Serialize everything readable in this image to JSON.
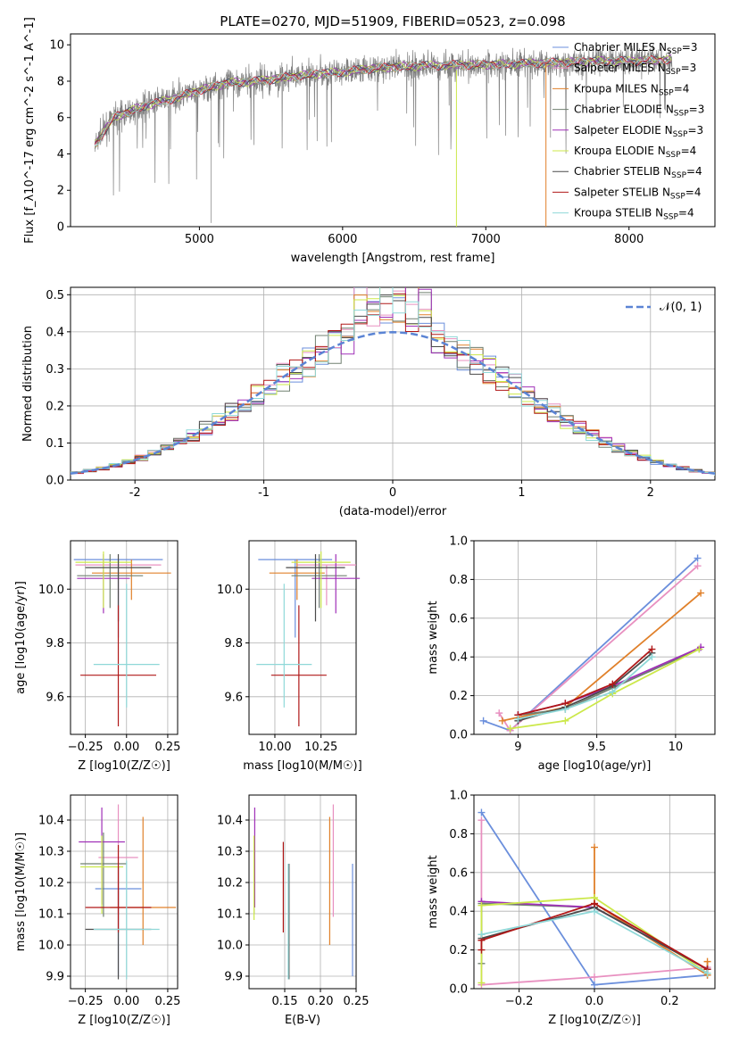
{
  "figure": {
    "title": "PLATE=0270, MJD=51909, FIBERID=0523, z=0.098"
  },
  "colors": {
    "Chabrier MILES": "#6b8fdc",
    "Salpeter MILES": "#e890c0",
    "Kroupa MILES": "#e0802a",
    "Chabrier ELODIE": "#708070",
    "Salpeter ELODIE": "#a030b8",
    "Kroupa ELODIE": "#cce84a",
    "Chabrier STELIB": "#4a4a4a",
    "Salpeter STELIB": "#b01818",
    "Kroupa STELIB": "#8fd8d8",
    "data": "#808080",
    "gaussian": "#5b84d4"
  },
  "chart_data": [
    {
      "id": "spectrum",
      "type": "line",
      "xlabel": "wavelength [Angstrom, rest frame]",
      "ylabel": "Flux [f_λ10^-17 erg cm^-2 s^-1 A^-1]",
      "xlim": [
        4100,
        8600
      ],
      "ylim": [
        0,
        10.6
      ],
      "xticks": [
        5000,
        6000,
        7000,
        8000
      ],
      "yticks": [
        0,
        2,
        4,
        6,
        8,
        10
      ],
      "legend": "right",
      "legend_entries": [
        {
          "name": "Chabrier MILES",
          "n": 3
        },
        {
          "name": "Salpeter MILES",
          "n": 3
        },
        {
          "name": "Kroupa MILES",
          "n": 4
        },
        {
          "name": "Chabrier ELODIE",
          "n": 3
        },
        {
          "name": "Salpeter ELODIE",
          "n": 3
        },
        {
          "name": "Kroupa ELODIE",
          "n": 4
        },
        {
          "name": "Chabrier STELIB",
          "n": 4
        },
        {
          "name": "Salpeter STELIB",
          "n": 4
        },
        {
          "name": "Kroupa STELIB",
          "n": 4
        }
      ],
      "continuum_x": [
        4270,
        4400,
        4600,
        4800,
        5000,
        5200,
        5400,
        5600,
        5800,
        6000,
        6200,
        6400,
        6600,
        6800,
        7000,
        7200,
        7400,
        7600,
        7800,
        8000,
        8200,
        8300
      ],
      "continuum_y": [
        4.5,
        6.0,
        6.6,
        7.0,
        7.5,
        7.9,
        8.0,
        8.2,
        8.4,
        8.5,
        8.7,
        8.8,
        8.85,
        8.9,
        8.9,
        8.95,
        9.0,
        9.05,
        9.1,
        9.1,
        9.15,
        9.2
      ]
    },
    {
      "id": "residuals",
      "type": "histogram",
      "xlabel": "(data-model)/error",
      "ylabel": "Normed distribution",
      "xlim": [
        -2.5,
        2.5
      ],
      "ylim": [
        0,
        0.52
      ],
      "xticks": [
        -2,
        -1,
        0,
        1,
        2
      ],
      "yticks": [
        0.0,
        0.1,
        0.2,
        0.3,
        0.4,
        0.5
      ],
      "legend": "top-right",
      "gaussian_label": "𝒩(0, 1)",
      "bin_width": 0.1
    },
    {
      "id": "age_vs_z",
      "type": "scatter",
      "xlabel": "Z [log10(Z/Z☉)]",
      "ylabel": "age  [log10(age/yr)]",
      "xlim": [
        -0.34,
        0.31
      ],
      "ylim": [
        9.46,
        10.18
      ],
      "xticks": [
        -0.25,
        0.0,
        0.25
      ],
      "xtick_labels": [
        "−0.25",
        "0.00",
        "0.25"
      ],
      "yticks": [
        9.6,
        9.8,
        10.0
      ],
      "points": [
        {
          "series": "Chabrier MILES",
          "x": -0.05,
          "y": 10.11,
          "xerr": 0.27,
          "yerr_lo": 0.29,
          "yerr_hi": 0.0
        },
        {
          "series": "Salpeter MILES",
          "x": -0.05,
          "y": 10.09,
          "xerr": 0.26,
          "yerr_lo": 0.15,
          "yerr_hi": 0.0
        },
        {
          "series": "Kroupa MILES",
          "x": 0.03,
          "y": 10.06,
          "xerr": 0.24,
          "yerr_lo": 0.1,
          "yerr_hi": 0.05
        },
        {
          "series": "Chabrier ELODIE",
          "x": -0.1,
          "y": 10.05,
          "xerr": 0.2,
          "yerr_lo": 0.12,
          "yerr_hi": 0.08
        },
        {
          "series": "Salpeter ELODIE",
          "x": -0.14,
          "y": 10.04,
          "xerr": 0.16,
          "yerr_lo": 0.13,
          "yerr_hi": 0.09
        },
        {
          "series": "Kroupa ELODIE",
          "x": -0.14,
          "y": 10.1,
          "xerr": 0.17,
          "yerr_lo": 0.17,
          "yerr_hi": 0.04
        },
        {
          "series": "Chabrier STELIB",
          "x": -0.05,
          "y": 10.08,
          "xerr": 0.2,
          "yerr_lo": 0.2,
          "yerr_hi": 0.05
        },
        {
          "series": "Salpeter STELIB",
          "x": -0.05,
          "y": 9.68,
          "xerr": 0.23,
          "yerr_lo": 0.19,
          "yerr_hi": 0.26
        },
        {
          "series": "Kroupa STELIB",
          "x": 0.0,
          "y": 9.72,
          "xerr": 0.2,
          "yerr_lo": 0.16,
          "yerr_hi": 0.3
        }
      ]
    },
    {
      "id": "age_vs_mass",
      "type": "scatter",
      "xlabel": "mass [log10(M/M☉)]",
      "ylabel": "",
      "xlim": [
        9.86,
        10.44
      ],
      "ylim": [
        9.46,
        10.18
      ],
      "xticks": [
        10.0,
        10.25
      ],
      "xtick_labels": [
        "10.00",
        "10.25"
      ],
      "yticks": [
        9.6,
        9.8,
        10.0
      ],
      "points": [
        {
          "series": "Chabrier MILES",
          "x": 10.11,
          "y": 10.11,
          "xerr": 0.2,
          "yerr_lo": 0.29,
          "yerr_hi": 0.0
        },
        {
          "series": "Salpeter MILES",
          "x": 10.28,
          "y": 10.09,
          "xerr": 0.16,
          "yerr_lo": 0.15,
          "yerr_hi": 0.0
        },
        {
          "series": "Kroupa MILES",
          "x": 10.12,
          "y": 10.06,
          "xerr": 0.15,
          "yerr_lo": 0.1,
          "yerr_hi": 0.05
        },
        {
          "series": "Chabrier ELODIE",
          "x": 10.24,
          "y": 10.05,
          "xerr": 0.15,
          "yerr_lo": 0.12,
          "yerr_hi": 0.08
        },
        {
          "series": "Salpeter ELODIE",
          "x": 10.33,
          "y": 10.04,
          "xerr": 0.13,
          "yerr_lo": 0.13,
          "yerr_hi": 0.09
        },
        {
          "series": "Kroupa ELODIE",
          "x": 10.25,
          "y": 10.1,
          "xerr": 0.16,
          "yerr_lo": 0.17,
          "yerr_hi": 0.04
        },
        {
          "series": "Chabrier STELIB",
          "x": 10.22,
          "y": 10.08,
          "xerr": 0.16,
          "yerr_lo": 0.2,
          "yerr_hi": 0.05
        },
        {
          "series": "Salpeter STELIB",
          "x": 10.13,
          "y": 9.68,
          "xerr": 0.15,
          "yerr_lo": 0.19,
          "yerr_hi": 0.26
        },
        {
          "series": "Kroupa STELIB",
          "x": 10.05,
          "y": 9.72,
          "xerr": 0.15,
          "yerr_lo": 0.16,
          "yerr_hi": 0.3
        }
      ]
    },
    {
      "id": "massweight_vs_age",
      "type": "line",
      "xlabel": "age  [log10(age/yr)]",
      "ylabel": "mass weight",
      "xlim": [
        8.72,
        10.25
      ],
      "ylim": [
        0,
        1.0
      ],
      "xticks": [
        9.0,
        9.5,
        10.0
      ],
      "yticks": [
        0.0,
        0.2,
        0.4,
        0.6,
        0.8,
        1.0
      ],
      "series": [
        {
          "name": "Chabrier MILES",
          "x": [
            8.78,
            8.95,
            10.14
          ],
          "y": [
            0.07,
            0.02,
            0.91
          ]
        },
        {
          "name": "Salpeter MILES",
          "x": [
            8.88,
            8.95,
            10.14
          ],
          "y": [
            0.11,
            0.02,
            0.87
          ]
        },
        {
          "name": "Kroupa MILES",
          "x": [
            8.9,
            9.3,
            10.16
          ],
          "y": [
            0.07,
            0.14,
            0.73
          ]
        },
        {
          "name": "Chabrier ELODIE",
          "x": [
            9.0,
            9.3,
            9.6,
            10.15
          ],
          "y": [
            0.1,
            0.13,
            0.24,
            0.44
          ]
        },
        {
          "name": "Salpeter ELODIE",
          "x": [
            9.0,
            9.3,
            9.6,
            10.16
          ],
          "y": [
            0.1,
            0.16,
            0.25,
            0.45
          ]
        },
        {
          "name": "Kroupa ELODIE",
          "x": [
            8.95,
            9.3,
            9.6,
            10.15
          ],
          "y": [
            0.03,
            0.07,
            0.21,
            0.44
          ]
        },
        {
          "name": "Chabrier STELIB",
          "x": [
            9.0,
            9.3,
            9.6,
            9.85
          ],
          "y": [
            0.07,
            0.14,
            0.25,
            0.42
          ]
        },
        {
          "name": "Salpeter STELIB",
          "x": [
            9.0,
            9.3,
            9.6,
            9.85
          ],
          "y": [
            0.1,
            0.16,
            0.26,
            0.44
          ]
        },
        {
          "name": "Kroupa STELIB",
          "x": [
            9.0,
            9.3,
            9.6,
            9.85
          ],
          "y": [
            0.08,
            0.13,
            0.22,
            0.4
          ]
        }
      ]
    },
    {
      "id": "mass_vs_z",
      "type": "scatter",
      "xlabel": "Z [log10(Z/Z☉)]",
      "ylabel": "mass [log10(M/M☉)]",
      "xlim": [
        -0.34,
        0.31
      ],
      "ylim": [
        9.86,
        10.48
      ],
      "xticks": [
        -0.25,
        0.0,
        0.25
      ],
      "xtick_labels": [
        "−0.25",
        "0.00",
        "0.25"
      ],
      "yticks": [
        9.9,
        10.0,
        10.1,
        10.2,
        10.3,
        10.4
      ],
      "points": [
        {
          "series": "Chabrier MILES",
          "x": -0.05,
          "y": 10.18,
          "xerr": 0.14,
          "yerr_lo": 0.28,
          "yerr_hi": 0.0
        },
        {
          "series": "Salpeter MILES",
          "x": -0.05,
          "y": 10.28,
          "xerr": 0.12,
          "yerr_lo": 0.18,
          "yerr_hi": 0.17
        },
        {
          "series": "Kroupa MILES",
          "x": 0.1,
          "y": 10.12,
          "xerr": 0.2,
          "yerr_lo": 0.12,
          "yerr_hi": 0.29
        },
        {
          "series": "Chabrier ELODIE",
          "x": -0.14,
          "y": 10.26,
          "xerr": 0.14,
          "yerr_lo": 0.17,
          "yerr_hi": 0.1
        },
        {
          "series": "Salpeter ELODIE",
          "x": -0.15,
          "y": 10.33,
          "xerr": 0.14,
          "yerr_lo": 0.2,
          "yerr_hi": 0.11
        },
        {
          "series": "Kroupa ELODIE",
          "x": -0.15,
          "y": 10.25,
          "xerr": 0.13,
          "yerr_lo": 0.15,
          "yerr_hi": 0.1
        },
        {
          "series": "Chabrier STELIB",
          "x": -0.05,
          "y": 10.05,
          "xerr": 0.2,
          "yerr_lo": 0.16,
          "yerr_hi": 0.2
        },
        {
          "series": "Salpeter STELIB",
          "x": -0.05,
          "y": 10.12,
          "xerr": 0.2,
          "yerr_lo": 0.08,
          "yerr_hi": 0.2
        },
        {
          "series": "Kroupa STELIB",
          "x": 0.0,
          "y": 10.05,
          "xerr": 0.2,
          "yerr_lo": 0.16,
          "yerr_hi": 0.22
        }
      ]
    },
    {
      "id": "mass_vs_ebv",
      "type": "scatter",
      "xlabel": "E(B-V)",
      "ylabel": "",
      "xlim": [
        0.1,
        0.25
      ],
      "ylim": [
        9.86,
        10.48
      ],
      "xticks": [
        0.15,
        0.2,
        0.25
      ],
      "xtick_labels": [
        "0.15",
        "0.20",
        "0.25"
      ],
      "yticks": [
        9.9,
        10.0,
        10.1,
        10.2,
        10.3,
        10.4
      ],
      "points": [
        {
          "series": "Chabrier MILES",
          "x": 0.245,
          "y": 10.08,
          "yerr_lo": 0.18,
          "yerr_hi": 0.18
        },
        {
          "series": "Salpeter MILES",
          "x": 0.218,
          "y": 10.27,
          "yerr_lo": 0.18,
          "yerr_hi": 0.18
        },
        {
          "series": "Kroupa MILES",
          "x": 0.213,
          "y": 10.2,
          "yerr_lo": 0.2,
          "yerr_hi": 0.21
        },
        {
          "series": "Chabrier ELODIE",
          "x": 0.107,
          "y": 10.24,
          "yerr_lo": 0.14,
          "yerr_hi": 0.1
        },
        {
          "series": "Salpeter ELODIE",
          "x": 0.108,
          "y": 10.3,
          "yerr_lo": 0.18,
          "yerr_hi": 0.14
        },
        {
          "series": "Kroupa ELODIE",
          "x": 0.107,
          "y": 10.22,
          "yerr_lo": 0.14,
          "yerr_hi": 0.13
        },
        {
          "series": "Chabrier STELIB",
          "x": 0.156,
          "y": 10.08,
          "yerr_lo": 0.19,
          "yerr_hi": 0.18
        },
        {
          "series": "Salpeter STELIB",
          "x": 0.148,
          "y": 10.19,
          "yerr_lo": 0.15,
          "yerr_hi": 0.14
        },
        {
          "series": "Kroupa STELIB",
          "x": 0.155,
          "y": 10.08,
          "yerr_lo": 0.19,
          "yerr_hi": 0.18
        }
      ]
    },
    {
      "id": "massweight_vs_z",
      "type": "line",
      "xlabel": "Z [log10(Z/Z☉)]",
      "ylabel": "mass weight",
      "xlim": [
        -0.32,
        0.32
      ],
      "ylim": [
        0,
        1.0
      ],
      "xticks": [
        -0.2,
        0.0,
        0.2
      ],
      "xtick_labels": [
        "−0.2",
        "0.0",
        "0.2"
      ],
      "yticks": [
        0.0,
        0.2,
        0.4,
        0.6,
        0.8,
        1.0
      ],
      "series": [
        {
          "name": "Chabrier MILES",
          "x": [
            -0.3,
            0.0,
            0.3
          ],
          "y": [
            0.91,
            0.02,
            0.07
          ]
        },
        {
          "name": "Salpeter MILES",
          "x": [
            -0.3,
            -0.3,
            0.0,
            0.3
          ],
          "y": [
            0.87,
            0.02,
            0.06,
            0.11
          ]
        },
        {
          "name": "Kroupa MILES",
          "x": [
            0.0,
            0.0,
            0.3,
            0.3
          ],
          "y": [
            0.73,
            0.44,
            0.07,
            0.14
          ]
        },
        {
          "name": "Chabrier ELODIE",
          "x": [
            -0.3,
            -0.3,
            0.0,
            0.3
          ],
          "y": [
            0.13,
            0.44,
            0.42,
            0.1
          ]
        },
        {
          "name": "Salpeter ELODIE",
          "x": [
            -0.3,
            0.0,
            0.3
          ],
          "y": [
            0.45,
            0.42,
            0.1
          ]
        },
        {
          "name": "Kroupa ELODIE",
          "x": [
            -0.3,
            -0.3,
            0.0,
            0.3
          ],
          "y": [
            0.03,
            0.43,
            0.47,
            0.08
          ]
        },
        {
          "name": "Chabrier STELIB",
          "x": [
            -0.3,
            0.0,
            0.3
          ],
          "y": [
            0.26,
            0.42,
            0.1
          ]
        },
        {
          "name": "Salpeter STELIB",
          "x": [
            -0.3,
            -0.3,
            0.0,
            0.3
          ],
          "y": [
            0.2,
            0.25,
            0.44,
            0.1
          ]
        },
        {
          "name": "Kroupa STELIB",
          "x": [
            -0.3,
            0.0,
            0.3
          ],
          "y": [
            0.28,
            0.4,
            0.08
          ]
        }
      ]
    }
  ]
}
